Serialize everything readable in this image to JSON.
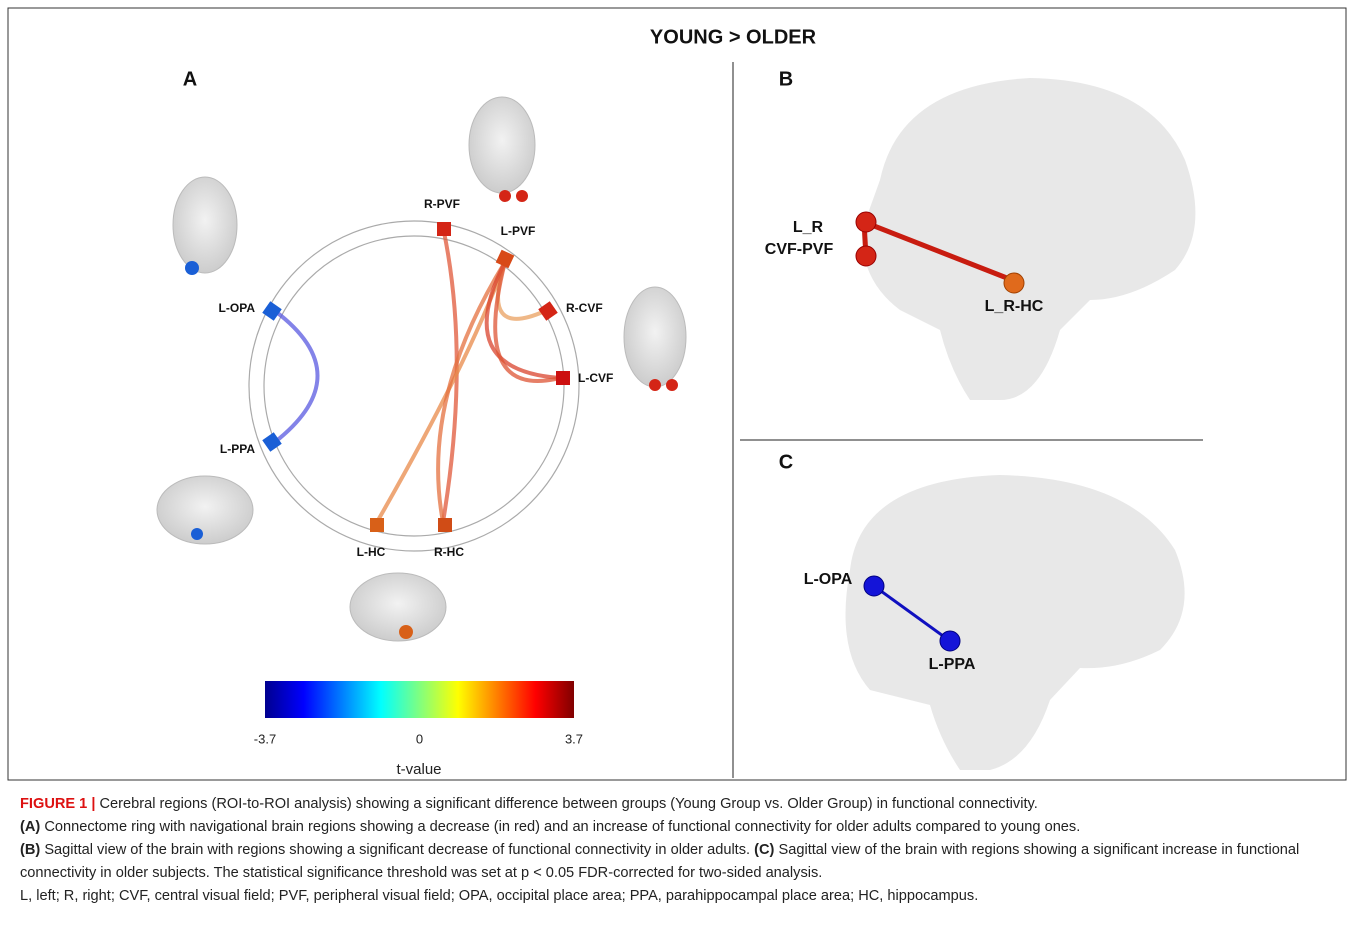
{
  "figure": {
    "title": "YOUNG > OLDER",
    "panel_a": {
      "letter": "A",
      "nodes": [
        "R-PVF",
        "L-PVF",
        "R-CVF",
        "L-CVF",
        "L-HC",
        "R-HC",
        "L-OPA",
        "L-PPA"
      ],
      "colorbar": {
        "lim": [
          -3.7,
          3.7
        ],
        "ticks": [
          -3.7,
          0,
          3.7
        ],
        "label": "t-value"
      }
    },
    "panel_b": {
      "letter": "B",
      "labels": [
        "L_R",
        "CVF-PVF",
        "L_R-HC"
      ]
    },
    "panel_c": {
      "letter": "C",
      "labels": [
        "L-OPA",
        "L-PPA"
      ]
    }
  },
  "caption": {
    "figure_label": "FIGURE 1 |",
    "intro": "Cerebral regions (ROI-to-ROI analysis) showing a significant difference between groups (Young Group vs. Older Group) in functional connectivity.",
    "parts": [
      {
        "label": "(A)",
        "text": "Connectome ring with navigational brain regions showing a decrease (in red) and an increase of functional connectivity for older adults compared to young ones."
      },
      {
        "label": "(B)",
        "text": "Sagittal view of the brain with regions showing a significant decrease of functional connectivity in older adults."
      },
      {
        "label": "(C)",
        "text": "Sagittal view of the brain with regions showing a significant increase in functional connectivity in older subjects. The statistical significance threshold was set at p < 0.05 FDR-corrected for two-sided analysis."
      }
    ],
    "abbreviations": "L, left; R, right; CVF, central visual field; PVF, peripheral visual field; OPA, occipital place area; PPA, parahippocampal place area; HC, hippocampus."
  }
}
